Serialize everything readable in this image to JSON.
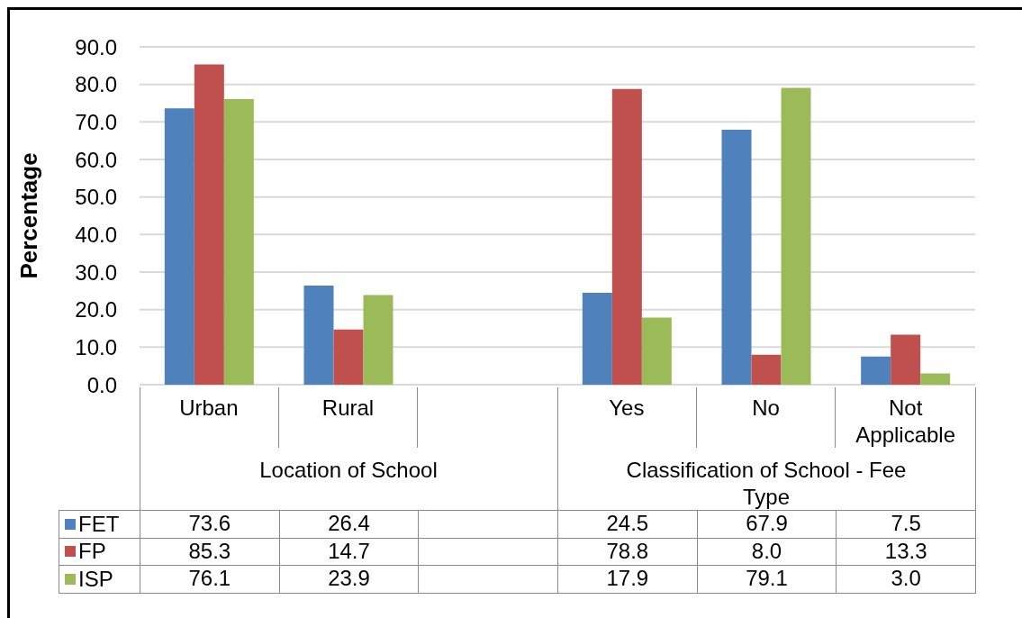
{
  "chart_data": {
    "type": "bar",
    "ylabel": "Percentage",
    "categories": [
      "Urban",
      "Rural",
      null,
      "Yes",
      "No",
      "Not Applicable"
    ],
    "series": [
      {
        "name": "FET",
        "color": "#4f81bd",
        "values": [
          73.6,
          26.4,
          null,
          24.5,
          67.9,
          7.5
        ],
        "value_labels": [
          "73.6",
          "26.4",
          null,
          "24.5",
          "67.9",
          "7.5"
        ]
      },
      {
        "name": "FP",
        "color": "#c0504d",
        "values": [
          85.3,
          14.7,
          null,
          78.8,
          8.0,
          13.3
        ],
        "value_labels": [
          "85.3",
          "14.7",
          null,
          "78.8",
          "8.0",
          "13.3"
        ]
      },
      {
        "name": "ISP",
        "color": "#9bbb59",
        "values": [
          76.1,
          23.9,
          null,
          17.9,
          79.1,
          3.0
        ],
        "value_labels": [
          "76.1",
          "23.9",
          null,
          "17.9",
          "79.1",
          "3.0"
        ]
      }
    ],
    "ylim": [
      0,
      90
    ],
    "yticks": [
      {
        "value": 0,
        "label": "0.0"
      },
      {
        "value": 10,
        "label": "10.0"
      },
      {
        "value": 20,
        "label": "20.0"
      },
      {
        "value": 30,
        "label": "30.0"
      },
      {
        "value": 40,
        "label": "40.0"
      },
      {
        "value": 50,
        "label": "50.0"
      },
      {
        "value": 60,
        "label": "60.0"
      },
      {
        "value": 70,
        "label": "70.0"
      },
      {
        "value": 80,
        "label": "80.0"
      },
      {
        "value": 90,
        "label": "90.0"
      }
    ],
    "grid": "y",
    "legend": "bottom left",
    "annotations": [
      "Location of School",
      "Classification of School - Fee Type"
    ]
  }
}
